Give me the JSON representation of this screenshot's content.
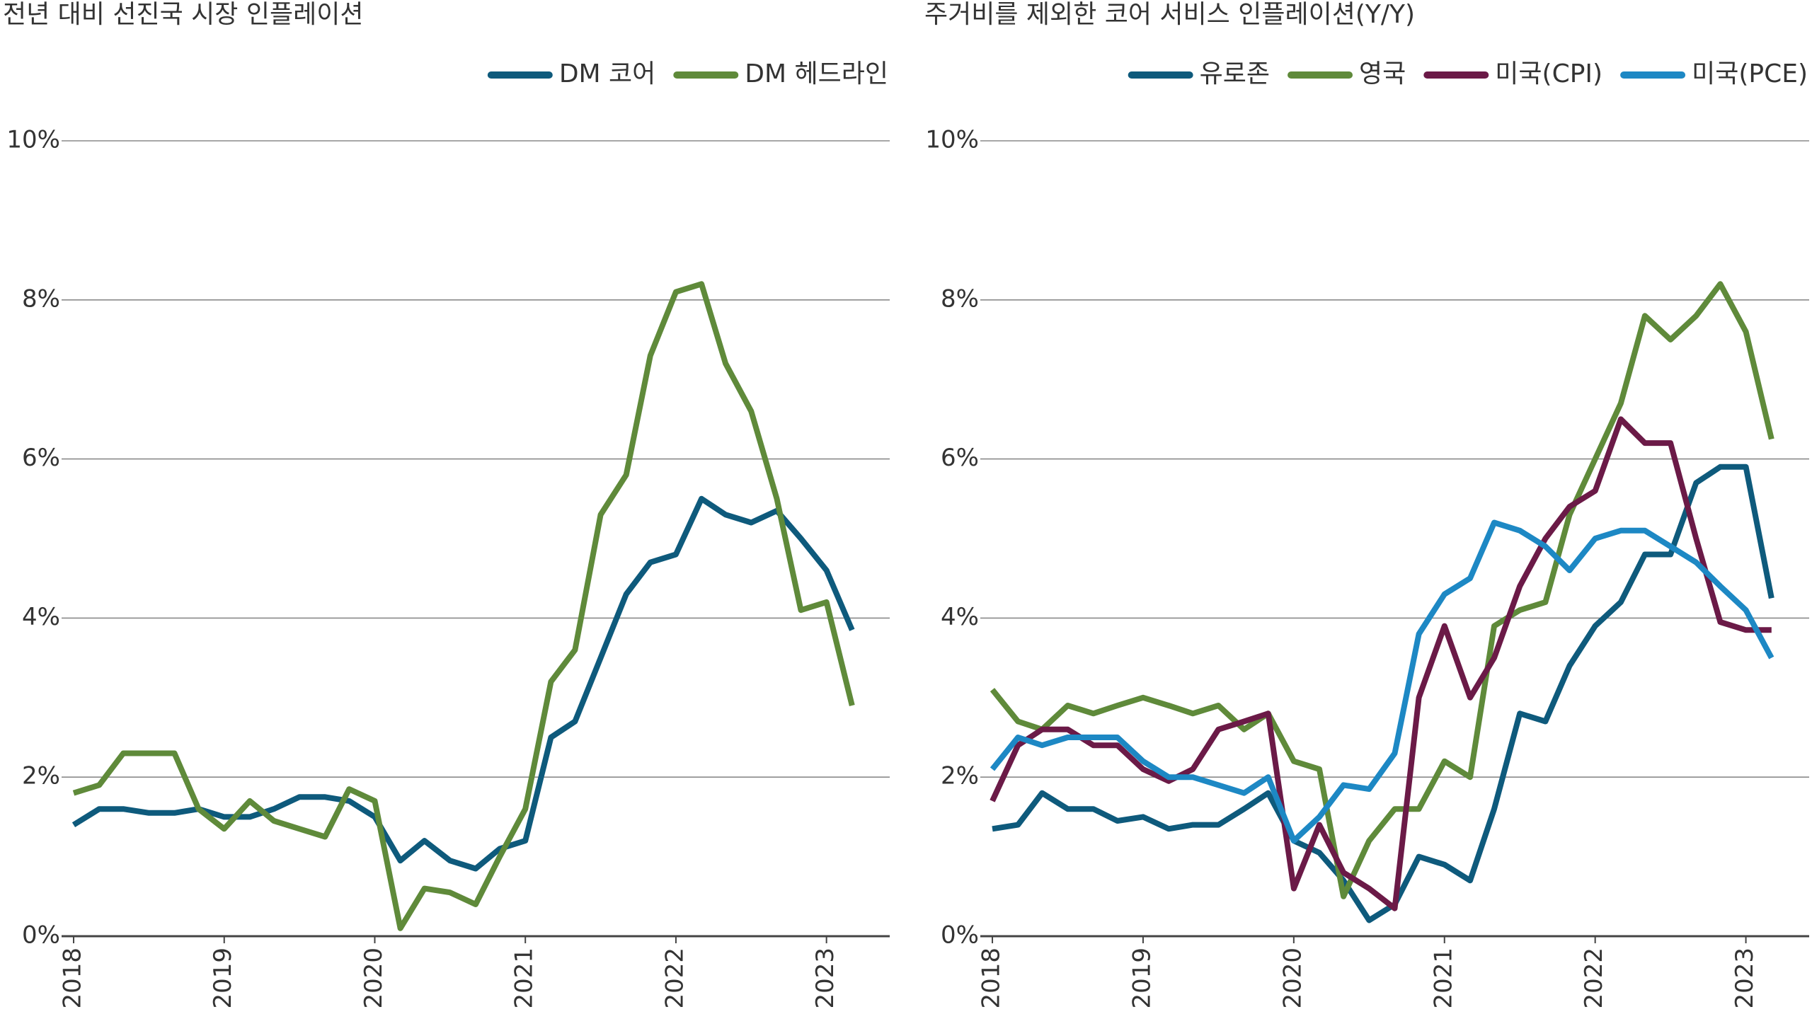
{
  "chart_data": [
    {
      "type": "line",
      "title": "전년 대비 선진국 시장 인플레이션",
      "legend": "top-right",
      "grid": true,
      "x": [
        2018,
        2018.17,
        2018.33,
        2018.5,
        2018.67,
        2018.83,
        2019,
        2019.17,
        2019.33,
        2019.5,
        2019.67,
        2019.83,
        2020,
        2020.17,
        2020.33,
        2020.5,
        2020.67,
        2020.83,
        2021,
        2021.17,
        2021.33,
        2021.5,
        2021.67,
        2021.83,
        2022,
        2022.17,
        2022.33,
        2022.5,
        2022.67,
        2022.83,
        2023,
        2023.17
      ],
      "xlim": [
        2017.92,
        2023.42
      ],
      "xticks": [
        2018,
        2019,
        2020,
        2021,
        2022,
        2023
      ],
      "ylim": [
        0,
        10
      ],
      "yticks": [
        {
          "value": 0,
          "label": "0%"
        },
        {
          "value": 2,
          "label": "2%"
        },
        {
          "value": 4,
          "label": "4%"
        },
        {
          "value": 6,
          "label": "6%"
        },
        {
          "value": 8,
          "label": "8%"
        },
        {
          "value": 10,
          "label": "10%"
        }
      ],
      "series": [
        {
          "name": "DM 코어",
          "color": "#0e5a7c",
          "values": [
            1.4,
            1.6,
            1.6,
            1.55,
            1.55,
            1.6,
            1.5,
            1.5,
            1.6,
            1.75,
            1.75,
            1.7,
            1.5,
            0.95,
            1.2,
            0.95,
            0.85,
            1.1,
            1.2,
            2.5,
            2.7,
            3.5,
            4.3,
            4.7,
            4.8,
            5.5,
            5.3,
            5.2,
            5.35,
            5.0,
            4.6,
            3.85
          ]
        },
        {
          "name": "DM 헤드라인",
          "color": "#5f8a3a",
          "values": [
            1.8,
            1.9,
            2.3,
            2.3,
            2.3,
            1.6,
            1.35,
            1.7,
            1.45,
            1.35,
            1.25,
            1.85,
            1.7,
            0.1,
            0.6,
            0.55,
            0.4,
            1.0,
            1.6,
            3.2,
            3.6,
            5.3,
            5.8,
            7.3,
            8.1,
            8.2,
            7.2,
            6.6,
            5.5,
            4.1,
            4.2,
            2.9
          ]
        }
      ]
    },
    {
      "type": "line",
      "title": "주거비를 제외한 코어 서비스 인플레이션(Y/Y)",
      "legend": "top-right",
      "grid": true,
      "x": [
        2018,
        2018.17,
        2018.33,
        2018.5,
        2018.67,
        2018.83,
        2019,
        2019.17,
        2019.33,
        2019.5,
        2019.67,
        2019.83,
        2020,
        2020.17,
        2020.33,
        2020.5,
        2020.67,
        2020.83,
        2021,
        2021.17,
        2021.33,
        2021.5,
        2021.67,
        2021.83,
        2022,
        2022.17,
        2022.33,
        2022.5,
        2022.67,
        2022.83,
        2023,
        2023.17
      ],
      "xlim": [
        2017.92,
        2023.42
      ],
      "xticks": [
        2018,
        2019,
        2020,
        2021,
        2022,
        2023
      ],
      "ylim": [
        0,
        10
      ],
      "yticks": [
        {
          "value": 0,
          "label": "0%"
        },
        {
          "value": 2,
          "label": "2%"
        },
        {
          "value": 4,
          "label": "4%"
        },
        {
          "value": 6,
          "label": "6%"
        },
        {
          "value": 8,
          "label": "8%"
        },
        {
          "value": 10,
          "label": "10%"
        }
      ],
      "series": [
        {
          "name": "유로존",
          "color": "#0e5a7c",
          "values": [
            1.35,
            1.4,
            1.8,
            1.6,
            1.6,
            1.45,
            1.5,
            1.35,
            1.4,
            1.4,
            1.6,
            1.8,
            1.2,
            1.05,
            0.7,
            0.2,
            0.4,
            1.0,
            0.9,
            0.7,
            1.6,
            2.8,
            2.7,
            3.4,
            3.9,
            4.2,
            4.8,
            4.8,
            5.7,
            5.9,
            5.9,
            4.25
          ]
        },
        {
          "name": "영국",
          "color": "#5f8a3a",
          "values": [
            3.1,
            2.7,
            2.6,
            2.9,
            2.8,
            2.9,
            3.0,
            2.9,
            2.8,
            2.9,
            2.6,
            2.8,
            2.2,
            2.1,
            0.5,
            1.2,
            1.6,
            1.6,
            2.2,
            2.0,
            3.9,
            4.1,
            4.2,
            5.3,
            6.0,
            6.7,
            7.8,
            7.5,
            7.8,
            8.2,
            7.6,
            6.25
          ]
        },
        {
          "name": "미국(CPI)",
          "color": "#6b1a47",
          "values": [
            1.7,
            2.4,
            2.6,
            2.6,
            2.4,
            2.4,
            2.1,
            1.95,
            2.1,
            2.6,
            2.7,
            2.8,
            0.6,
            1.4,
            0.8,
            0.6,
            0.35,
            3.0,
            3.9,
            3.0,
            3.5,
            4.4,
            5.0,
            5.4,
            5.6,
            6.5,
            6.2,
            6.2,
            5.0,
            3.95,
            3.85,
            3.85
          ]
        },
        {
          "name": "미국(PCE)",
          "color": "#1d88c4",
          "values": [
            2.1,
            2.5,
            2.4,
            2.5,
            2.5,
            2.5,
            2.2,
            2.0,
            2.0,
            1.9,
            1.8,
            2.0,
            1.2,
            1.5,
            1.9,
            1.85,
            2.3,
            3.8,
            4.3,
            4.5,
            5.2,
            5.1,
            4.9,
            4.6,
            5.0,
            5.1,
            5.1,
            4.9,
            4.7,
            4.4,
            4.1,
            3.5
          ]
        }
      ]
    }
  ]
}
